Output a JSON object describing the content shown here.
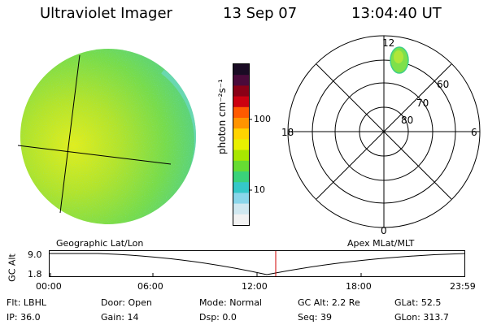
{
  "header": {
    "instrument": "Ultraviolet Imager",
    "date": "13 Sep 07",
    "time": "13:04:40 UT"
  },
  "colorbar": {
    "unit": "photon cm⁻²s⁻¹",
    "ticks": [
      "100",
      "10"
    ],
    "scale": "log",
    "colors": [
      "#1a0b24",
      "#4a0a3a",
      "#8a0016",
      "#cc0010",
      "#ff5a00",
      "#ff9400",
      "#ffd400",
      "#e8f000",
      "#a8e600",
      "#66dc33",
      "#3ad27a",
      "#35c8c8",
      "#8ad6ea",
      "#d0e8f0",
      "#f2f2f2"
    ]
  },
  "polar": {
    "mlt_labels": [
      "12",
      "18",
      "6",
      "0"
    ],
    "lat_labels": [
      "60",
      "70",
      "80"
    ]
  },
  "timeline": {
    "left_label": "Geographic Lat/Lon",
    "right_label": "Apex MLat/MLT",
    "axis_title": "GC Alt",
    "y_labels": [
      "9.0",
      "1.8"
    ],
    "x_labels": [
      "00:00",
      "06:00",
      "12:00",
      "18:00",
      "23:59"
    ],
    "marker_color": "#d00000"
  },
  "info": {
    "row1": [
      {
        "label": "Flt:",
        "value": "LBHL"
      },
      {
        "label": "Door:",
        "value": "Open"
      },
      {
        "label": "Mode:",
        "value": "Normal"
      },
      {
        "label": "GC Alt:",
        "value": "2.2 Re"
      },
      {
        "label": "GLat:",
        "value": "52.5"
      }
    ],
    "row2": [
      {
        "label": "IP:",
        "value": "36.0"
      },
      {
        "label": "Gain:",
        "value": "14"
      },
      {
        "label": "Dsp:",
        "value": "0.0"
      },
      {
        "label": "Seq:",
        "value": "39"
      },
      {
        "label": "GLon:",
        "value": "313.7"
      }
    ]
  }
}
